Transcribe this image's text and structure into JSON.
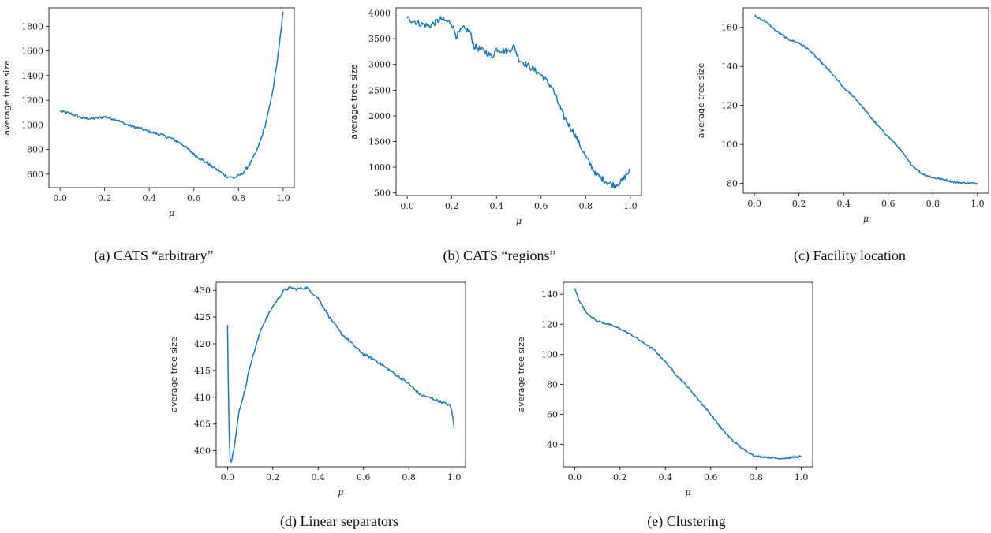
{
  "chart_data": [
    {
      "type": "line",
      "caption": "(a) CATS “arbitrary”",
      "xlabel": "μ",
      "ylabel": "average tree size",
      "xlim": [
        -0.05,
        1.05
      ],
      "ylim": [
        490,
        1950
      ],
      "xticks": [
        0.0,
        0.2,
        0.4,
        0.6,
        0.8,
        1.0
      ],
      "xtick_labels": [
        "0.0",
        "0.2",
        "0.4",
        "0.6",
        "0.8",
        "1.0"
      ],
      "yticks": [
        600,
        800,
        1000,
        1200,
        1400,
        1600,
        1800
      ],
      "ytick_labels": [
        "600",
        "800",
        "1000",
        "1200",
        "1400",
        "1600",
        "1800"
      ],
      "color": "#1f77b4",
      "noise": 12,
      "series": [
        {
          "x": [
            0.0,
            0.05,
            0.1,
            0.15,
            0.2,
            0.25,
            0.3,
            0.35,
            0.4,
            0.45,
            0.5,
            0.55,
            0.6,
            0.65,
            0.7,
            0.75,
            0.78,
            0.8,
            0.82,
            0.85,
            0.88,
            0.9,
            0.92,
            0.94,
            0.96,
            0.98,
            1.0
          ],
          "y": [
            1110,
            1090,
            1055,
            1050,
            1065,
            1045,
            1000,
            975,
            945,
            920,
            890,
            840,
            760,
            700,
            640,
            580,
            570,
            585,
            610,
            680,
            780,
            880,
            1000,
            1150,
            1350,
            1600,
            1920
          ]
        }
      ]
    },
    {
      "type": "line",
      "caption": "(b) CATS “regions”",
      "xlabel": "μ",
      "ylabel": "average tree size",
      "xlim": [
        -0.05,
        1.05
      ],
      "ylim": [
        450,
        4100
      ],
      "xticks": [
        0.0,
        0.2,
        0.4,
        0.6,
        0.8,
        1.0
      ],
      "xtick_labels": [
        "0.0",
        "0.2",
        "0.4",
        "0.6",
        "0.8",
        "1.0"
      ],
      "yticks": [
        500,
        1000,
        1500,
        2000,
        2500,
        3000,
        3500,
        4000
      ],
      "ytick_labels": [
        "500",
        "1000",
        "1500",
        "2000",
        "2500",
        "3000",
        "3500",
        "4000"
      ],
      "color": "#1f77b4",
      "noise": 60,
      "series": [
        {
          "x": [
            0.0,
            0.05,
            0.1,
            0.15,
            0.2,
            0.22,
            0.25,
            0.28,
            0.3,
            0.35,
            0.38,
            0.4,
            0.45,
            0.48,
            0.5,
            0.55,
            0.6,
            0.65,
            0.7,
            0.75,
            0.8,
            0.85,
            0.9,
            0.93,
            0.96,
            1.0
          ],
          "y": [
            3900,
            3800,
            3750,
            3880,
            3800,
            3550,
            3700,
            3650,
            3350,
            3250,
            3150,
            3300,
            3250,
            3350,
            3100,
            2950,
            2800,
            2550,
            2000,
            1650,
            1200,
            850,
            700,
            650,
            720,
            950
          ]
        }
      ]
    },
    {
      "type": "line",
      "caption": "(c) Facility location",
      "xlabel": "μ",
      "ylabel": "average tree size",
      "xlim": [
        -0.05,
        1.05
      ],
      "ylim": [
        75,
        170
      ],
      "xticks": [
        0.0,
        0.2,
        0.4,
        0.6,
        0.8,
        1.0
      ],
      "xtick_labels": [
        "0.0",
        "0.2",
        "0.4",
        "0.6",
        "0.8",
        "1.0"
      ],
      "yticks": [
        80,
        100,
        120,
        140,
        160
      ],
      "ytick_labels": [
        "80",
        "100",
        "120",
        "140",
        "160"
      ],
      "color": "#1f77b4",
      "noise": 0.5,
      "series": [
        {
          "x": [
            0.0,
            0.05,
            0.1,
            0.15,
            0.2,
            0.25,
            0.3,
            0.35,
            0.4,
            0.45,
            0.5,
            0.55,
            0.6,
            0.65,
            0.7,
            0.75,
            0.8,
            0.85,
            0.9,
            0.95,
            1.0
          ],
          "y": [
            166,
            163,
            158,
            154,
            152,
            148,
            142,
            136,
            129,
            124,
            117,
            110,
            104,
            98,
            90,
            85,
            83,
            82,
            80.5,
            80.2,
            80
          ]
        }
      ]
    },
    {
      "type": "line",
      "caption": "(d) Linear separators",
      "xlabel": "μ",
      "ylabel": "average tree size",
      "xlim": [
        -0.05,
        1.05
      ],
      "ylim": [
        397,
        431.5
      ],
      "xticks": [
        0.0,
        0.2,
        0.4,
        0.6,
        0.8,
        1.0
      ],
      "xtick_labels": [
        "0.0",
        "0.2",
        "0.4",
        "0.6",
        "0.8",
        "1.0"
      ],
      "yticks": [
        400,
        405,
        410,
        415,
        420,
        425,
        430
      ],
      "ytick_labels": [
        "400",
        "405",
        "410",
        "415",
        "420",
        "425",
        "430"
      ],
      "color": "#1f77b4",
      "noise": 0.25,
      "series": [
        {
          "x": [
            0.0,
            0.005,
            0.01,
            0.015,
            0.02,
            0.03,
            0.05,
            0.08,
            0.1,
            0.15,
            0.2,
            0.25,
            0.28,
            0.3,
            0.35,
            0.4,
            0.45,
            0.5,
            0.55,
            0.6,
            0.65,
            0.7,
            0.75,
            0.8,
            0.85,
            0.9,
            0.95,
            0.98,
            0.99,
            1.0
          ],
          "y": [
            423.5,
            408,
            399,
            397.8,
            398.5,
            401,
            407,
            412,
            416,
            423,
            427,
            430,
            430.5,
            430.2,
            430.5,
            428.5,
            425,
            422,
            420,
            418,
            417,
            415.5,
            414,
            412.5,
            410.5,
            409.8,
            409,
            408.5,
            407.5,
            404.2
          ]
        }
      ]
    },
    {
      "type": "line",
      "caption": "(e) Clustering",
      "xlabel": "μ",
      "ylabel": "average tree size",
      "xlim": [
        -0.05,
        1.05
      ],
      "ylim": [
        25,
        148
      ],
      "xticks": [
        0.0,
        0.2,
        0.4,
        0.6,
        0.8,
        1.0
      ],
      "xtick_labels": [
        "0.0",
        "0.2",
        "0.4",
        "0.6",
        "0.8",
        "1.0"
      ],
      "yticks": [
        40,
        60,
        80,
        100,
        120,
        140
      ],
      "ytick_labels": [
        "40",
        "60",
        "80",
        "100",
        "120",
        "140"
      ],
      "color": "#1f77b4",
      "noise": 0.6,
      "series": [
        {
          "x": [
            0.0,
            0.02,
            0.05,
            0.1,
            0.15,
            0.2,
            0.25,
            0.3,
            0.35,
            0.4,
            0.45,
            0.5,
            0.55,
            0.6,
            0.65,
            0.7,
            0.75,
            0.8,
            0.85,
            0.9,
            0.95,
            1.0
          ],
          "y": [
            144,
            136,
            128,
            122,
            120,
            117,
            113,
            108,
            103,
            95,
            86,
            78,
            69,
            60,
            50,
            42,
            36,
            32,
            31.5,
            30.5,
            31,
            32
          ]
        }
      ]
    }
  ]
}
